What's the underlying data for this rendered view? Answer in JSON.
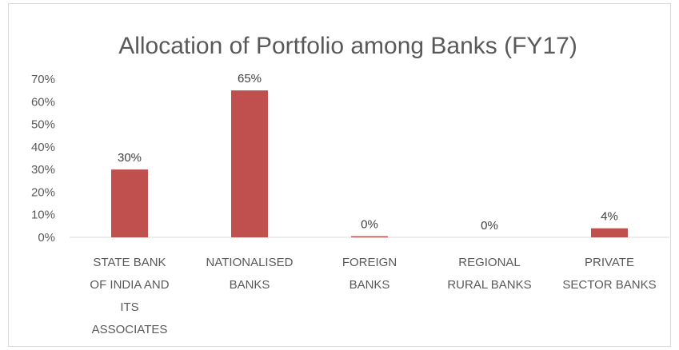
{
  "chart_data": {
    "type": "bar",
    "title": "Allocation of Portfolio among Banks (FY17)",
    "categories": [
      [
        "STATE BANK",
        "OF INDIA AND",
        "ITS",
        "ASSOCIATES"
      ],
      [
        "NATIONALISED",
        "BANKS"
      ],
      [
        "FOREIGN",
        "BANKS"
      ],
      [
        "REGIONAL",
        "RURAL BANKS"
      ],
      [
        "PRIVATE",
        "SECTOR BANKS"
      ]
    ],
    "values": [
      30,
      65,
      0.5,
      0,
      4
    ],
    "data_labels": [
      "30%",
      "65%",
      "0%",
      "0%",
      "4%"
    ],
    "yticks": [
      "0%",
      "10%",
      "20%",
      "30%",
      "40%",
      "50%",
      "60%",
      "70%"
    ],
    "ylim": [
      0,
      70
    ],
    "xlabel": "",
    "ylabel": "",
    "grid": false,
    "legend": "none",
    "bar_color": "#c0504d",
    "axis_color": "#d9d9d9",
    "text_color": "#595959"
  }
}
